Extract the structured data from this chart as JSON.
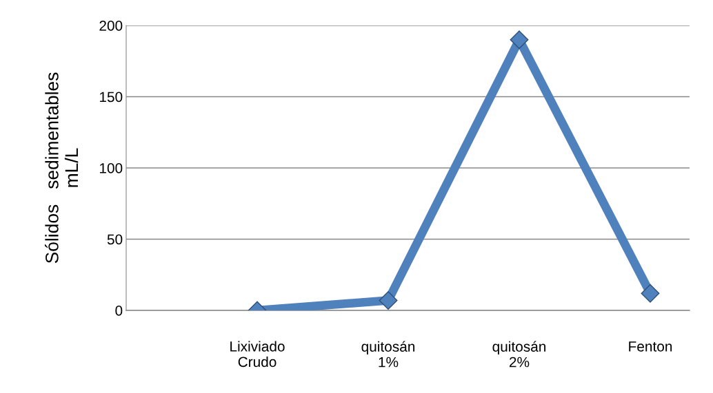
{
  "chart_data": {
    "type": "line",
    "ylabel": "Sólidos   sedimentables\nmL/L",
    "categories": [
      null,
      "Lixiviado\nCrudo",
      "quitosán\n1%",
      "quitosán\n2%",
      "Fenton"
    ],
    "series": [
      {
        "color": "#4f81bd",
        "values": [
          null,
          0,
          7,
          190,
          12
        ]
      }
    ],
    "ylim": [
      0,
      200
    ],
    "yticks": [
      0,
      50,
      100,
      150,
      200
    ],
    "grid": "y",
    "marker": "diamond",
    "line_style": "solid"
  }
}
